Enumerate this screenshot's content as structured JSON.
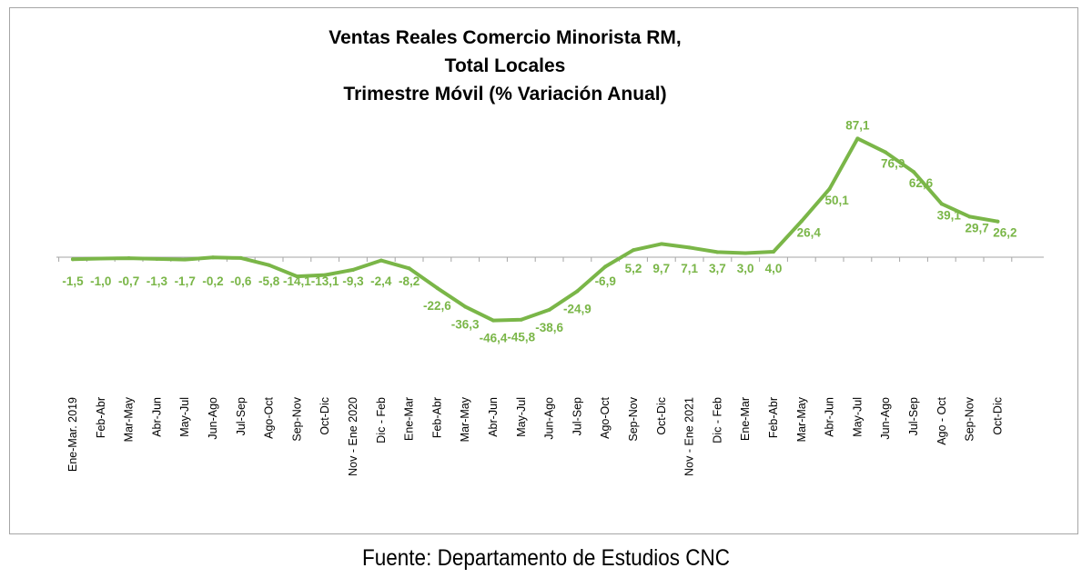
{
  "chart_data": {
    "type": "line",
    "title_lines": [
      "Ventas Reales Comercio Minorista RM,",
      "Total Locales",
      "Trimestre Móvil (% Variación Anual)"
    ],
    "categories": [
      "Ene-Mar. 2019",
      "Feb-Abr",
      "Mar-May",
      "Abr-Jun",
      "May-Jul",
      "Jun-Ago",
      "Jul-Sep",
      "Ago-Oct",
      "Sep-Nov",
      "Oct-Dic",
      "Nov - Ene 2020",
      "Dic - Feb",
      "Ene-Mar",
      "Feb-Abr",
      "Mar-May",
      "Abr-Jun",
      "May-Jul",
      "Jun-Ago",
      "Jul-Sep",
      "Ago-Oct",
      "Sep-Nov",
      "Oct-Dic",
      "Nov - Ene 2021",
      "Dic - Feb",
      "Ene-Mar",
      "Feb-Abr",
      "Mar-May",
      "Abr-Jun",
      "May-Jul",
      "Jun-Ago",
      "Jul-Sep",
      "Ago - Oct",
      "Sep-Nov",
      "Oct-Dic"
    ],
    "values": [
      -1.5,
      -1.0,
      -0.7,
      -1.3,
      -1.7,
      -0.2,
      -0.6,
      -5.8,
      -14.1,
      -13.1,
      -9.3,
      -2.4,
      -8.2,
      -22.6,
      -36.3,
      -46.4,
      -45.8,
      -38.6,
      -24.9,
      -6.9,
      5.2,
      9.7,
      7.1,
      3.7,
      3.0,
      4.0,
      26.4,
      50.1,
      87.1,
      76.9,
      62.6,
      39.1,
      29.7,
      26.2
    ],
    "data_labels": [
      "-1,5",
      "-1,0",
      "-0,7",
      "-1,3",
      "-1,7",
      "-0,2",
      "-0,6",
      "-5,8",
      "-14,1",
      "-13,1",
      "-9,3",
      "-2,4",
      "-8,2",
      "-22,6",
      "-36,3",
      "-46,4",
      "-45,8",
      "-38,6",
      "-24,9",
      "-6,9",
      "5,2",
      "9,7",
      "7,1",
      "3,7",
      "3,0",
      "4,0",
      "26,4",
      "50,1",
      "87,1",
      "76,9",
      "62,6",
      "39,1",
      "29,7",
      "26,2"
    ],
    "line_color": "#7ab648",
    "axis_color": "#a6a6a6",
    "ylim": [
      -60,
      100
    ],
    "grid": false,
    "legend": "none"
  },
  "source": "Fuente: Departamento de Estudios CNC"
}
